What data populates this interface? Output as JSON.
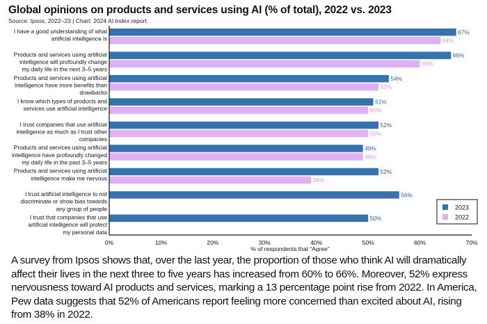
{
  "header": {
    "title": "Global opinions on products and services using AI (% of total), 2022 vs. 2023",
    "subtitle": "Source: Ipsos, 2022–23 | Chart: 2024 AI Index report"
  },
  "colors": {
    "2023": "#3572b0",
    "2022": "#e0b0f5",
    "label_2023": "#2f5f96",
    "label_2022": "#cf9be6"
  },
  "chart_data": {
    "type": "bar",
    "orientation": "horizontal",
    "title": "Global opinions on products and services using AI (% of total), 2022 vs. 2023",
    "subtitle": "Source: Ipsos, 2022–23 | Chart: 2024 AI Index report",
    "xlabel": "% of respondents that “Agree”",
    "ylabel": "",
    "xlim": [
      0,
      70
    ],
    "xticks": [
      "0%",
      "10%",
      "20%",
      "30%",
      "40%",
      "50%",
      "60%",
      "70%"
    ],
    "grid": false,
    "legend_position": "bottom-right",
    "categories": [
      [
        "I have a good understanding of what",
        "artificial intelligence is"
      ],
      [
        "Products and services using artificial",
        "intelligence will profoundly change",
        "my daily life in the next 3–5 years"
      ],
      [
        "Products and services using artificial",
        "intelligence have more benefits than",
        "drawbacks"
      ],
      [
        "I know which types of products and",
        "services use artificial intelligence"
      ],
      [
        "I trust companies that use artificial",
        "intelligence as much as I trust other",
        "companies"
      ],
      [
        "Products and services using artificial",
        "intelligence have profoundly changed",
        "my daily life in the past 3–5 years"
      ],
      [
        "Products and services using artificial",
        "intelligence make me nervous"
      ],
      [
        "I trust artificial intelligence to not",
        "discriminate or show bias towards",
        "any group of people"
      ],
      [
        "I trust that companies that use",
        "artificial intelligence will protect",
        "my personal data"
      ]
    ],
    "series": [
      {
        "name": "2023",
        "values": [
          67,
          66,
          54,
          51,
          52,
          49,
          52,
          56,
          50
        ]
      },
      {
        "name": "2022",
        "values": [
          64,
          60,
          52,
          50,
          50,
          49,
          39,
          null,
          null
        ]
      }
    ],
    "value_suffix": "%"
  },
  "caption": "A survey from Ipsos shows that, over the last year, the proportion of those who think AI will dramatically affect their lives in the next three to five years has increased from 60% to 66%. Moreover, 52% express nervousness toward AI products and services, marking a 13 percentage point rise from 2022. In America, Pew data suggests that 52% of Americans report feeling more concerned than excited about AI, rising from 38% in 2022."
}
